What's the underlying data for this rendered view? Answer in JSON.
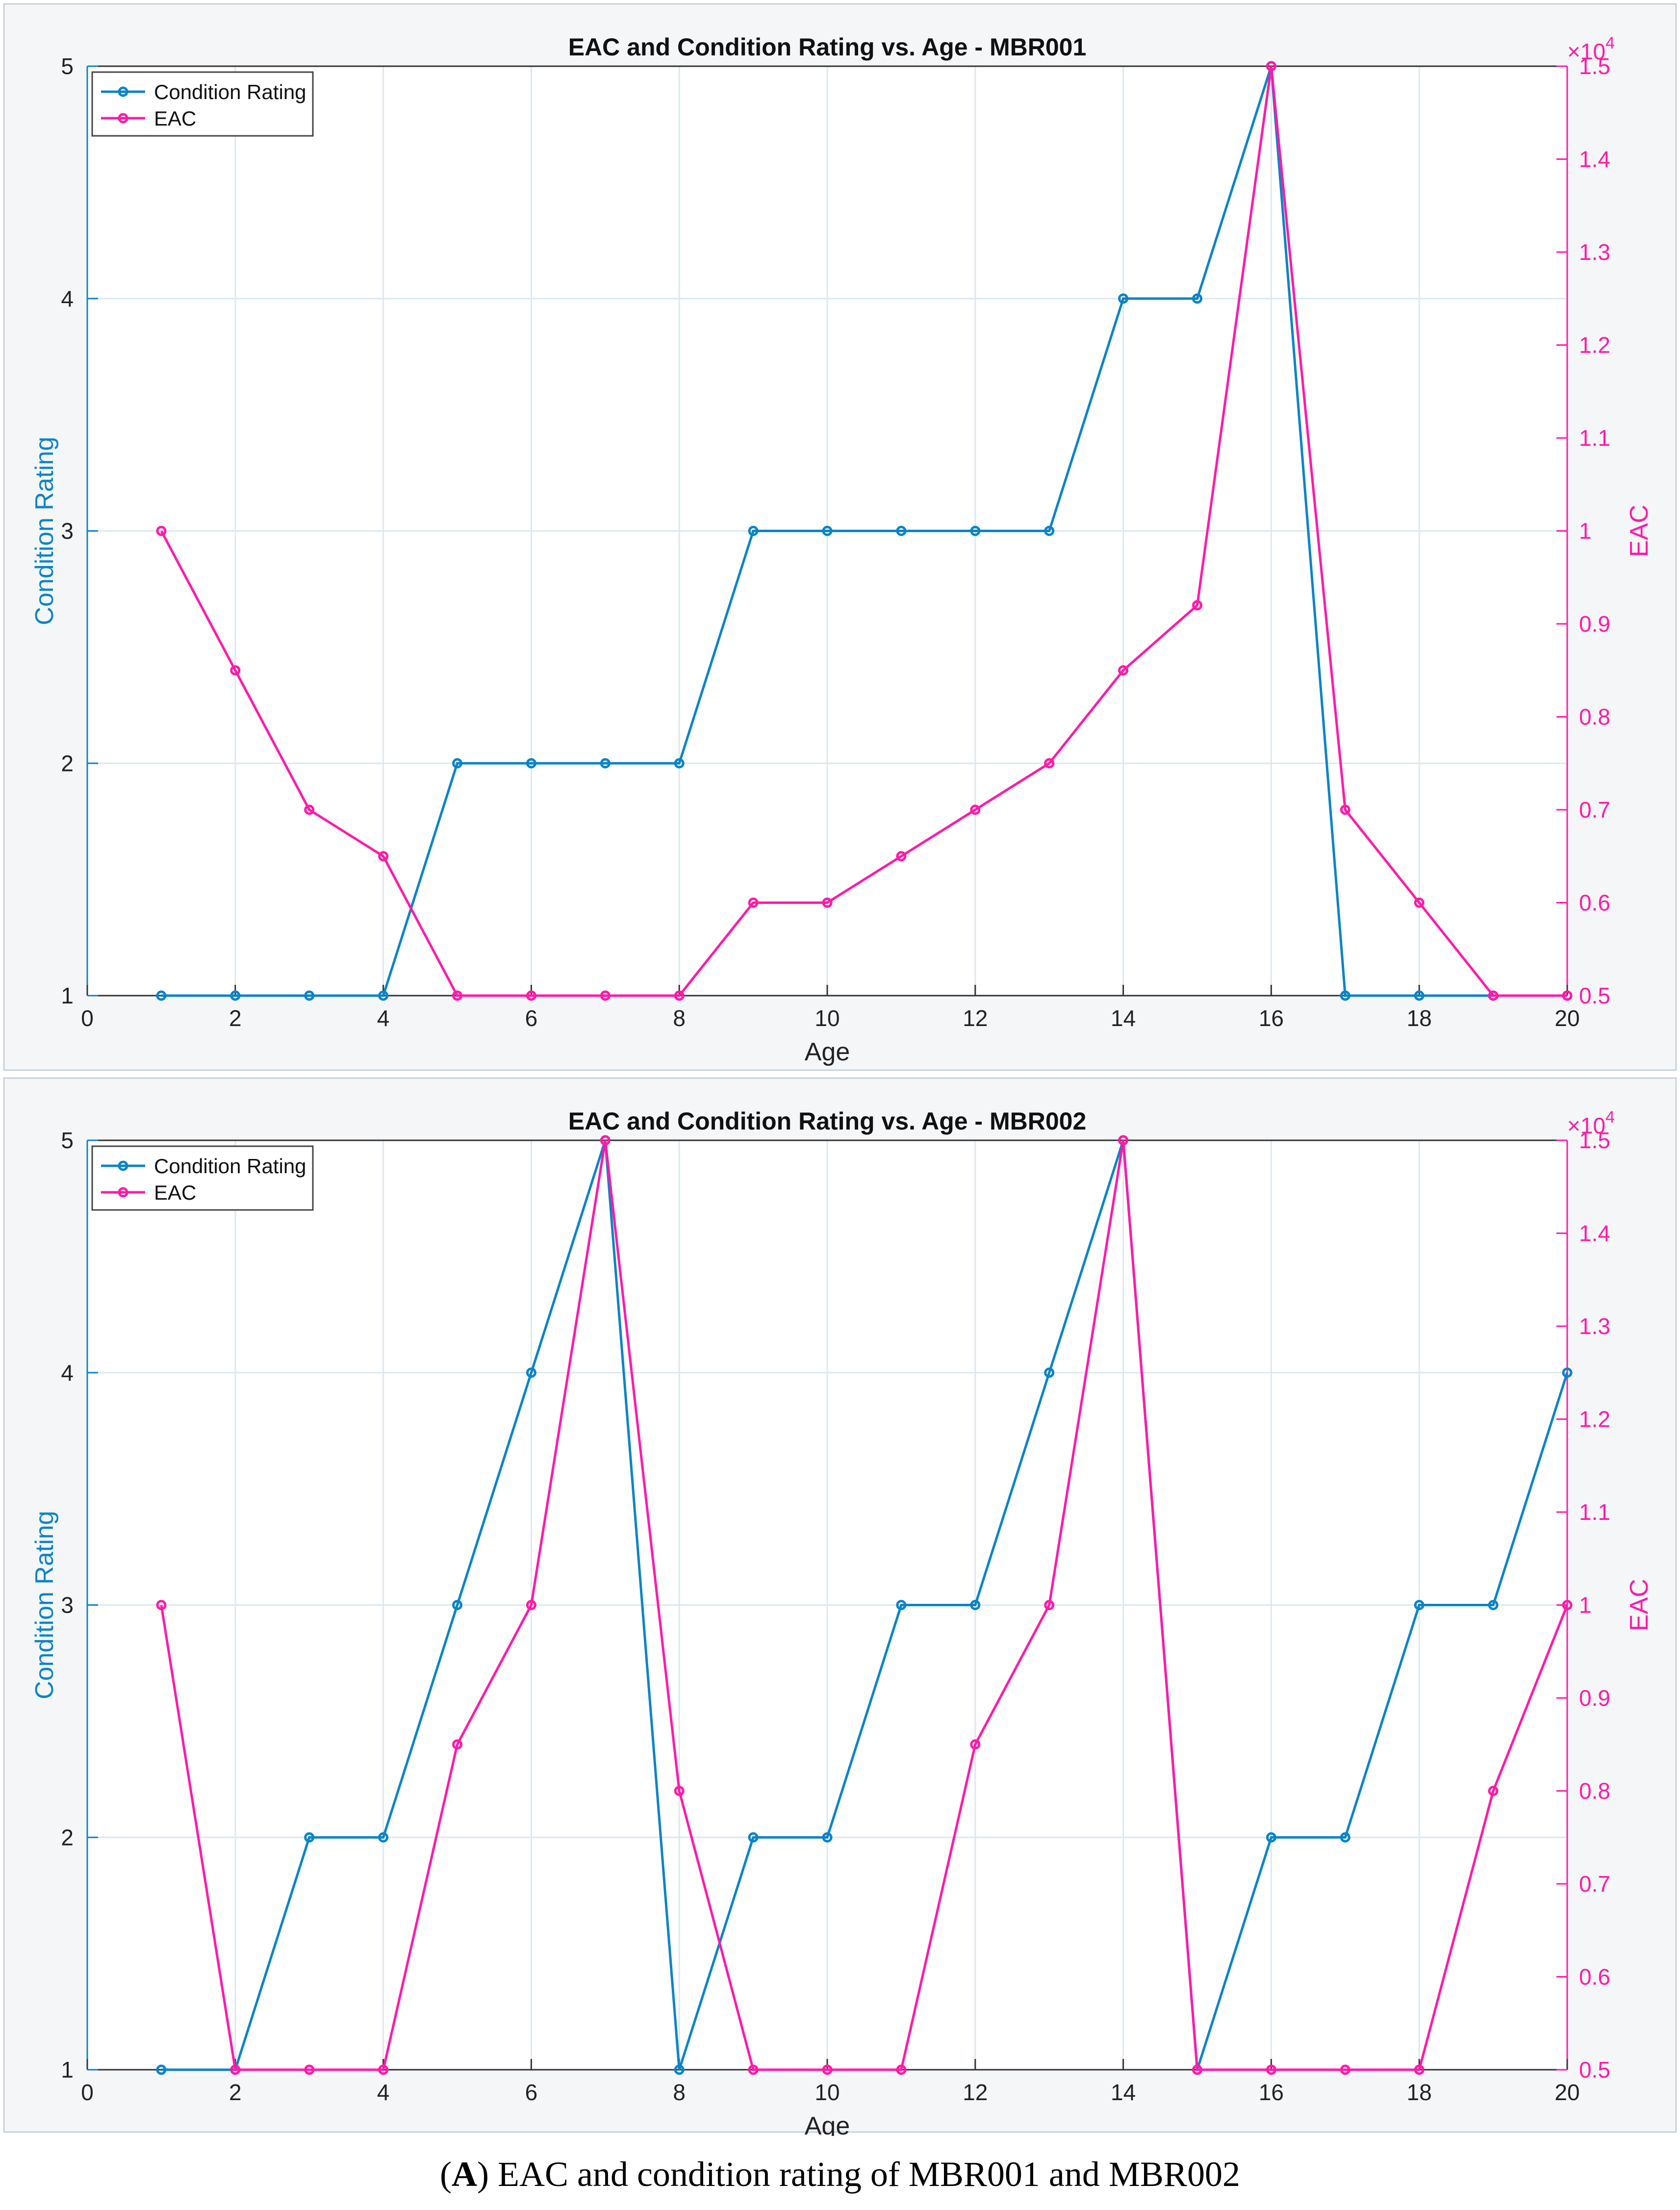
{
  "colors": {
    "condition": "#0b84c6",
    "eac": "#ff1aa8",
    "grid": "#dce8f0",
    "text": "#222222"
  },
  "chart_data": [
    {
      "type": "line",
      "title": "EAC and Condition Rating vs. Age - MBR001",
      "xlabel": "Age",
      "ylabel": "Condition Rating",
      "y2label": "EAC",
      "y2_exponent_label": "×10",
      "y2_exponent_power": "4",
      "xlim": [
        0,
        20
      ],
      "ylim": [
        1,
        5
      ],
      "y2lim": [
        0.5,
        1.5
      ],
      "xticks": [
        "0",
        "2",
        "4",
        "6",
        "8",
        "10",
        "12",
        "14",
        "16",
        "18",
        "20"
      ],
      "yticks": [
        "1",
        "2",
        "3",
        "4",
        "5"
      ],
      "y2ticks": [
        "0.5",
        "0.6",
        "0.7",
        "0.8",
        "0.9",
        "1",
        "1.1",
        "1.2",
        "1.3",
        "1.4",
        "1.5"
      ],
      "grid": true,
      "legend": "top-left",
      "x": [
        1,
        2,
        3,
        4,
        5,
        6,
        7,
        8,
        9,
        10,
        11,
        12,
        13,
        14,
        15,
        16,
        17,
        18,
        19,
        20
      ],
      "series": [
        {
          "name": "Condition Rating",
          "axis": "left",
          "values": [
            1,
            1,
            1,
            1,
            2,
            2,
            2,
            2,
            3,
            3,
            3,
            3,
            3,
            4,
            4,
            5,
            1,
            1,
            1,
            1
          ]
        },
        {
          "name": "EAC",
          "axis": "right",
          "values": [
            1.0,
            0.85,
            0.7,
            0.65,
            0.5,
            0.5,
            0.5,
            0.5,
            0.6,
            0.6,
            0.65,
            0.7,
            0.75,
            0.85,
            0.92,
            1.5,
            0.7,
            0.6,
            0.5,
            0.5
          ]
        }
      ]
    },
    {
      "type": "line",
      "title": "EAC and Condition Rating vs. Age - MBR002",
      "xlabel": "Age",
      "ylabel": "Condition Rating",
      "y2label": "EAC",
      "y2_exponent_label": "×10",
      "y2_exponent_power": "4",
      "xlim": [
        0,
        20
      ],
      "ylim": [
        1,
        5
      ],
      "y2lim": [
        0.5,
        1.5
      ],
      "xticks": [
        "0",
        "2",
        "4",
        "6",
        "8",
        "10",
        "12",
        "14",
        "16",
        "18",
        "20"
      ],
      "yticks": [
        "1",
        "2",
        "3",
        "4",
        "5"
      ],
      "y2ticks": [
        "0.5",
        "0.6",
        "0.7",
        "0.8",
        "0.9",
        "1",
        "1.1",
        "1.2",
        "1.3",
        "1.4",
        "1.5"
      ],
      "grid": true,
      "legend": "top-left",
      "x": [
        1,
        2,
        3,
        4,
        5,
        6,
        7,
        8,
        9,
        10,
        11,
        12,
        13,
        14,
        15,
        16,
        17,
        18,
        19,
        20
      ],
      "series": [
        {
          "name": "Condition Rating",
          "axis": "left",
          "values": [
            1,
            1,
            2,
            2,
            3,
            4,
            5,
            1,
            2,
            2,
            3,
            3,
            4,
            5,
            1,
            2,
            2,
            3,
            3,
            4
          ]
        },
        {
          "name": "EAC",
          "axis": "right",
          "values": [
            1.0,
            0.5,
            0.5,
            0.5,
            0.85,
            1.0,
            1.5,
            0.8,
            0.5,
            0.5,
            0.5,
            0.85,
            1.0,
            1.5,
            0.5,
            0.5,
            0.5,
            0.5,
            0.8,
            1.0
          ]
        }
      ]
    }
  ],
  "caption": {
    "open": "(",
    "letter": "A",
    "rest": ") EAC and condition rating of MBR001 and MBR002"
  }
}
